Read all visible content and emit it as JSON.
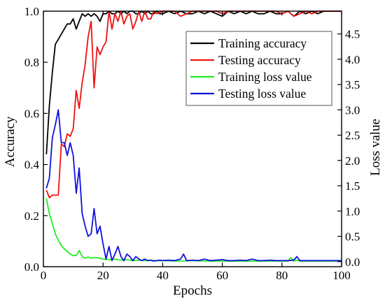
{
  "chart_data": {
    "type": "line",
    "xlabel": "Epochs",
    "ylabel": "Accuracy",
    "y2label": "Loss value",
    "xlim": [
      0,
      100
    ],
    "ylim": [
      0,
      1.0
    ],
    "y2lim": [
      -0.1,
      4.95
    ],
    "xticks": [
      "0",
      "20",
      "40",
      "60",
      "80",
      "100"
    ],
    "yticks": [
      "0.0",
      "0.2",
      "0.4",
      "0.6",
      "0.8",
      "1.0"
    ],
    "y2ticks": [
      "0.0",
      "0.5",
      "1.0",
      "1.5",
      "2.0",
      "2.5",
      "3.0",
      "3.5",
      "4.0",
      "4.5"
    ],
    "legend_position": "upper-right",
    "grid": false,
    "series": [
      {
        "name": "Training accuracy",
        "color": "#000000",
        "axis": "left",
        "x": [
          1,
          2,
          3,
          4,
          5,
          6,
          7,
          8,
          9,
          10,
          11,
          12,
          13,
          14,
          15,
          16,
          17,
          18,
          19,
          20,
          21,
          22,
          23,
          24,
          25,
          26,
          27,
          28,
          29,
          30,
          31,
          32,
          33,
          34,
          35,
          36,
          37,
          38,
          39,
          40,
          42,
          44,
          46,
          48,
          50,
          52,
          54,
          56,
          58,
          60,
          62,
          64,
          66,
          68,
          70,
          72,
          74,
          76,
          78,
          80,
          82,
          84,
          86,
          88,
          90,
          92,
          94,
          96,
          98,
          100
        ],
        "y": [
          0.44,
          0.63,
          0.76,
          0.87,
          0.89,
          0.91,
          0.93,
          0.95,
          0.95,
          0.97,
          0.93,
          0.96,
          0.99,
          0.98,
          0.99,
          0.98,
          0.99,
          0.98,
          0.96,
          0.99,
          0.99,
          1.0,
          0.99,
          0.99,
          1.0,
          0.99,
          1.0,
          0.99,
          1.0,
          1.0,
          0.99,
          0.99,
          1.0,
          0.99,
          1.0,
          0.99,
          0.99,
          1.0,
          0.99,
          0.99,
          1.0,
          0.99,
          1.0,
          0.99,
          0.99,
          1.0,
          0.99,
          1.0,
          0.99,
          0.98,
          1.0,
          0.99,
          1.0,
          0.99,
          1.0,
          0.99,
          0.99,
          1.0,
          0.99,
          0.99,
          1.0,
          0.98,
          1.0,
          0.99,
          1.0,
          0.99,
          1.0,
          1.0,
          1.0,
          1.0
        ]
      },
      {
        "name": "Testing accuracy",
        "color": "#ee1111",
        "axis": "left",
        "x": [
          1,
          2,
          3,
          4,
          5,
          6,
          7,
          8,
          9,
          10,
          11,
          12,
          13,
          14,
          15,
          16,
          17,
          18,
          19,
          20,
          21,
          22,
          23,
          24,
          25,
          26,
          27,
          28,
          29,
          30,
          31,
          32,
          33,
          34,
          35,
          36,
          37,
          38,
          40,
          42,
          44,
          46,
          48,
          50,
          52,
          54,
          56,
          58,
          60,
          62,
          64,
          66,
          68,
          70,
          72,
          74,
          76,
          78,
          80,
          82,
          84,
          86,
          88,
          90,
          92,
          94,
          96,
          98,
          100
        ],
        "y": [
          0.3,
          0.27,
          0.28,
          0.28,
          0.28,
          0.48,
          0.47,
          0.52,
          0.51,
          0.54,
          0.69,
          0.62,
          0.72,
          0.79,
          0.9,
          0.96,
          0.7,
          0.86,
          0.83,
          0.86,
          0.88,
          1.0,
          0.93,
          0.99,
          0.96,
          1.0,
          0.95,
          0.98,
          0.99,
          0.93,
          0.96,
          1.0,
          0.96,
          1.0,
          0.97,
          0.97,
          1.0,
          0.99,
          1.0,
          1.0,
          1.0,
          0.98,
          0.99,
          1.0,
          1.0,
          1.0,
          1.0,
          1.0,
          0.99,
          1.0,
          1.0,
          1.0,
          1.0,
          1.0,
          1.0,
          1.0,
          1.0,
          1.0,
          0.99,
          1.0,
          0.98,
          0.99,
          1.0,
          0.99,
          1.0,
          1.0,
          1.0,
          1.0,
          1.0
        ]
      },
      {
        "name": "Training loss value",
        "color": "#22ee22",
        "axis": "right",
        "x": [
          1,
          2,
          3,
          4,
          5,
          6,
          7,
          8,
          9,
          10,
          11,
          12,
          13,
          14,
          15,
          16,
          17,
          18,
          20,
          22,
          24,
          26,
          28,
          30,
          32,
          34,
          36,
          38,
          40,
          45,
          50,
          55,
          60,
          65,
          70,
          75,
          80,
          82,
          83,
          84,
          85,
          86,
          88,
          90,
          95,
          100
        ],
        "y": [
          1.25,
          0.95,
          0.75,
          0.55,
          0.42,
          0.32,
          0.25,
          0.2,
          0.15,
          0.12,
          0.12,
          0.22,
          0.1,
          0.07,
          0.09,
          0.07,
          0.08,
          0.08,
          0.05,
          0.04,
          0.05,
          0.03,
          0.04,
          0.02,
          0.03,
          0.02,
          0.03,
          0.02,
          0.02,
          0.01,
          0.02,
          0.01,
          0.01,
          0.01,
          0.01,
          0.01,
          0.01,
          0.01,
          0.08,
          0.01,
          0.03,
          0.01,
          0.01,
          0.01,
          0.01,
          0.01
        ]
      },
      {
        "name": "Testing loss value",
        "color": "#1111dd",
        "axis": "right",
        "x": [
          1,
          2,
          3,
          4,
          5,
          6,
          7,
          8,
          9,
          10,
          11,
          12,
          13,
          14,
          15,
          16,
          17,
          18,
          19,
          20,
          21,
          22,
          23,
          24,
          25,
          26,
          27,
          28,
          29,
          30,
          31,
          32,
          33,
          34,
          35,
          36,
          37,
          38,
          39,
          40,
          42,
          44,
          46,
          47,
          48,
          50,
          52,
          54,
          56,
          58,
          60,
          62,
          64,
          66,
          68,
          70,
          72,
          74,
          76,
          78,
          80,
          82,
          84,
          85,
          86,
          88,
          90,
          92,
          94,
          96,
          98,
          100
        ],
        "y": [
          1.45,
          1.65,
          2.45,
          2.7,
          3.0,
          2.35,
          2.35,
          2.1,
          2.35,
          2.1,
          1.35,
          1.85,
          0.95,
          0.7,
          0.5,
          0.55,
          1.05,
          0.55,
          0.7,
          0.35,
          0.05,
          0.3,
          0.02,
          0.15,
          0.3,
          0.1,
          0.02,
          0.15,
          0.1,
          0.02,
          0.1,
          0.05,
          0.02,
          0.05,
          0.02,
          0.03,
          0.01,
          0.02,
          0.03,
          0.02,
          0.03,
          0.02,
          0.05,
          0.15,
          0.02,
          0.03,
          0.02,
          0.05,
          0.02,
          0.03,
          0.04,
          0.02,
          0.02,
          0.03,
          0.02,
          0.05,
          0.02,
          0.02,
          0.03,
          0.02,
          0.02,
          0.02,
          0.03,
          0.1,
          0.02,
          0.02,
          0.02,
          0.02,
          0.02,
          0.02,
          0.02,
          0.02
        ]
      }
    ]
  }
}
